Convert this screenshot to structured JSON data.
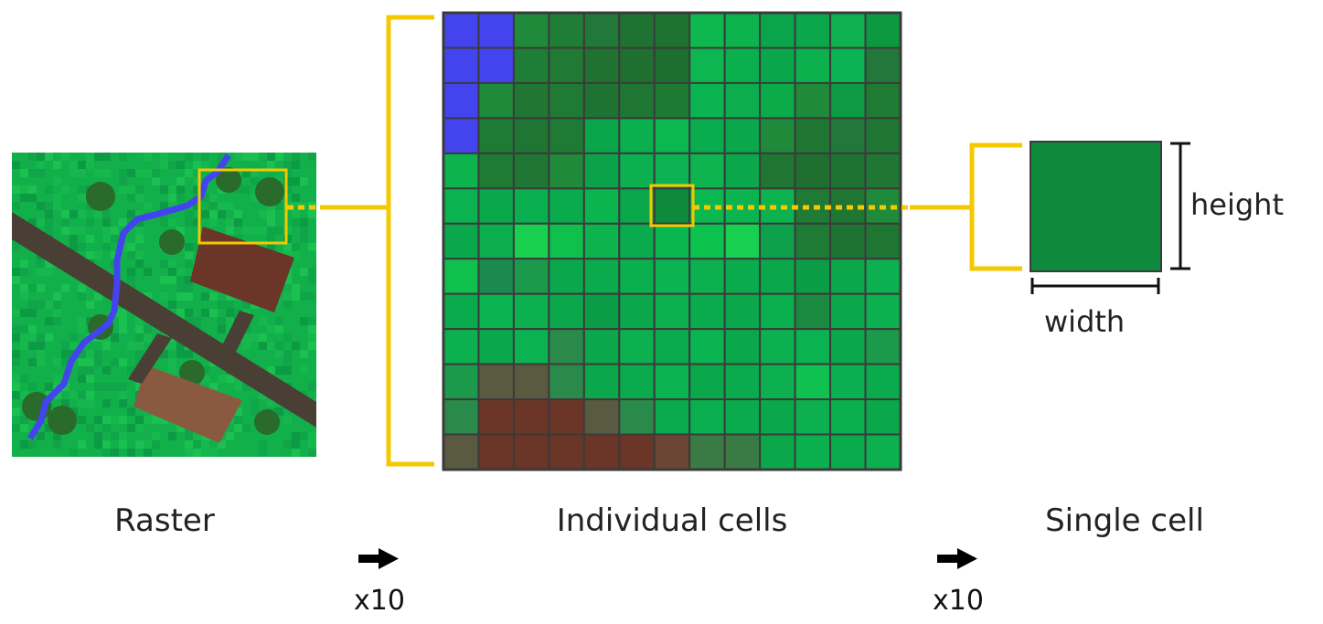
{
  "captions": {
    "raster": "Raster",
    "individual_cells": "Individual cells",
    "single_cell": "Single cell"
  },
  "zoom_labels": {
    "first": "x10",
    "second": "x10"
  },
  "dimension_labels": {
    "height": "height",
    "width": "width"
  },
  "colors": {
    "highlight": "#f5c800",
    "grid_line": "#3b3b3b",
    "water": "#4444ee",
    "road": "#4a3f35",
    "roof_dark": "#6b3528",
    "roof_light": "#8a5a40",
    "tree": "#2a6a2a",
    "single_cell_fill": "#0d8a3c"
  },
  "cell_grid": {
    "rows": 13,
    "cols": 13,
    "cells": [
      [
        "#4444ee",
        "#4444ee",
        "#1e8a3a",
        "#1f7d35",
        "#22773a",
        "#1f7332",
        "#1e7330",
        "#0db94f",
        "#0db44e",
        "#0aa54a",
        "#0aa84a",
        "#0eb04f",
        "#0c9a40"
      ],
      [
        "#4444ee",
        "#4444ee",
        "#1f7e35",
        "#207a33",
        "#1f7230",
        "#1f6f30",
        "#1d6e2f",
        "#0db650",
        "#0ab04d",
        "#0aa64a",
        "#0cb04d",
        "#0ab452",
        "#22773a"
      ],
      [
        "#4444ee",
        "#1e8a3a",
        "#1f7733",
        "#1f7a33",
        "#1f7332",
        "#1f7733",
        "#1e7a33",
        "#0ab450",
        "#0cad4c",
        "#0cab4a",
        "#1f8a3a",
        "#0c9a42",
        "#1f7a33"
      ],
      [
        "#4444ee",
        "#1f7a33",
        "#1f7532",
        "#1f7a33",
        "#0aa64a",
        "#0ab04d",
        "#0ab84f",
        "#0aad4d",
        "#0aa84a",
        "#1e8a3a",
        "#1f7733",
        "#22773a",
        "#1f7733"
      ],
      [
        "#0db34d",
        "#1f7a33",
        "#1f7733",
        "#1e8a3a",
        "#0aa34a",
        "#0cb04e",
        "#0cb252",
        "#0db44f",
        "#0aa84a",
        "#1f7532",
        "#1f6f30",
        "#1f7332",
        "#1f7733"
      ],
      [
        "#0ab250",
        "#0aa84a",
        "#0ab050",
        "#0aab4c",
        "#0ab550",
        "#0aa84a",
        "#0d8a3c",
        "#0ab84f",
        "#0cb44f",
        "#0cb24e",
        "#1f7a33",
        "#1f7532",
        "#1e8a3a"
      ],
      [
        "#0aa84a",
        "#0cad4c",
        "#1ad04f",
        "#10c04d",
        "#0cb34e",
        "#0aab4c",
        "#0ab650",
        "#0cc24f",
        "#18d04f",
        "#0ea04a",
        "#1f7a33",
        "#1e7332",
        "#1f7532"
      ],
      [
        "#10c04d",
        "#1a8a4e",
        "#1b9a4c",
        "#0aa84a",
        "#0aab4c",
        "#0ab04d",
        "#0ab450",
        "#0cb04e",
        "#0aab4c",
        "#0aa84a",
        "#0a9d45",
        "#0aa84a",
        "#0cb050"
      ],
      [
        "#0aab4c",
        "#0ab250",
        "#0cb04e",
        "#0aa84a",
        "#0a9d45",
        "#0aa84a",
        "#0cb04e",
        "#0aab4c",
        "#0aa84a",
        "#0ab04d",
        "#1a8a40",
        "#0aa84a",
        "#0cb04e"
      ],
      [
        "#0cb04e",
        "#0aa84a",
        "#0ab250",
        "#2a8a4a",
        "#0aa84a",
        "#0cb04e",
        "#0aab4c",
        "#0ab450",
        "#0aa84a",
        "#0cb04e",
        "#0ab250",
        "#0aa84a",
        "#1a9a4a"
      ],
      [
        "#1a9a4a",
        "#5a5a40",
        "#5a5a40",
        "#2a8a4a",
        "#0aa84a",
        "#0aab4c",
        "#0ab250",
        "#0aa84a",
        "#0aab4c",
        "#0cb04e",
        "#10c050",
        "#0ab050",
        "#0aab4c"
      ],
      [
        "#2a8a4a",
        "#6b3528",
        "#6b3528",
        "#6b3528",
        "#5a5a40",
        "#2a8a4a",
        "#0aab4c",
        "#0ab050",
        "#0aab4c",
        "#0aa84a",
        "#0cb04e",
        "#0ab04d",
        "#0aa84a"
      ],
      [
        "#5a5a40",
        "#6b3528",
        "#6b3528",
        "#6b3528",
        "#6b3528",
        "#6b3528",
        "#6b4535",
        "#3a7a45",
        "#3a7a45",
        "#0aa84a",
        "#0ab04d",
        "#0aab4c",
        "#0cb04e"
      ]
    ]
  }
}
